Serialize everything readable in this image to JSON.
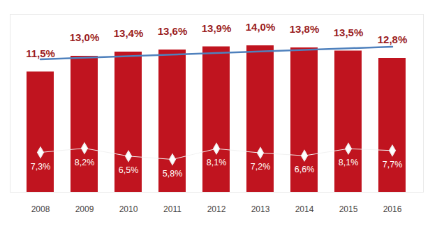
{
  "chart_data": {
    "type": "bar",
    "categories": [
      "2008",
      "2009",
      "2010",
      "2011",
      "2012",
      "2013",
      "2014",
      "2015",
      "2016"
    ],
    "series": [
      {
        "type": "bar",
        "color": "#c0141f",
        "values": [
          11.5,
          13.0,
          13.4,
          13.6,
          13.9,
          14.0,
          13.8,
          13.5,
          12.8
        ],
        "value_labels": [
          "11,5%",
          "13,0%",
          "13,4%",
          "13,6%",
          "13,9%",
          "14,0%",
          "13,8%",
          "13,5%",
          "12,8%"
        ]
      },
      {
        "type": "line",
        "color": "#4f81bd",
        "values": [
          12.7,
          12.85,
          13.0,
          13.15,
          13.3,
          13.45,
          13.6,
          13.75,
          13.9
        ]
      },
      {
        "type": "line",
        "color": "#f2f2f2",
        "marker": "diamond",
        "axis": "y2",
        "values": [
          7.3,
          8.2,
          6.5,
          5.8,
          8.1,
          7.2,
          6.6,
          8.1,
          7.7
        ],
        "value_labels": [
          "7,3%",
          "8,2%",
          "6,5%",
          "5,8%",
          "8,1%",
          "7,2%",
          "6,6%",
          "8,1%",
          "7,7%"
        ]
      }
    ],
    "ylim": [
      0,
      17
    ],
    "yticks": [],
    "y2lim": [
      -1.25,
      37
    ],
    "y2ticks": [],
    "grid": false,
    "data_labels": true,
    "tick_labels": "x"
  }
}
